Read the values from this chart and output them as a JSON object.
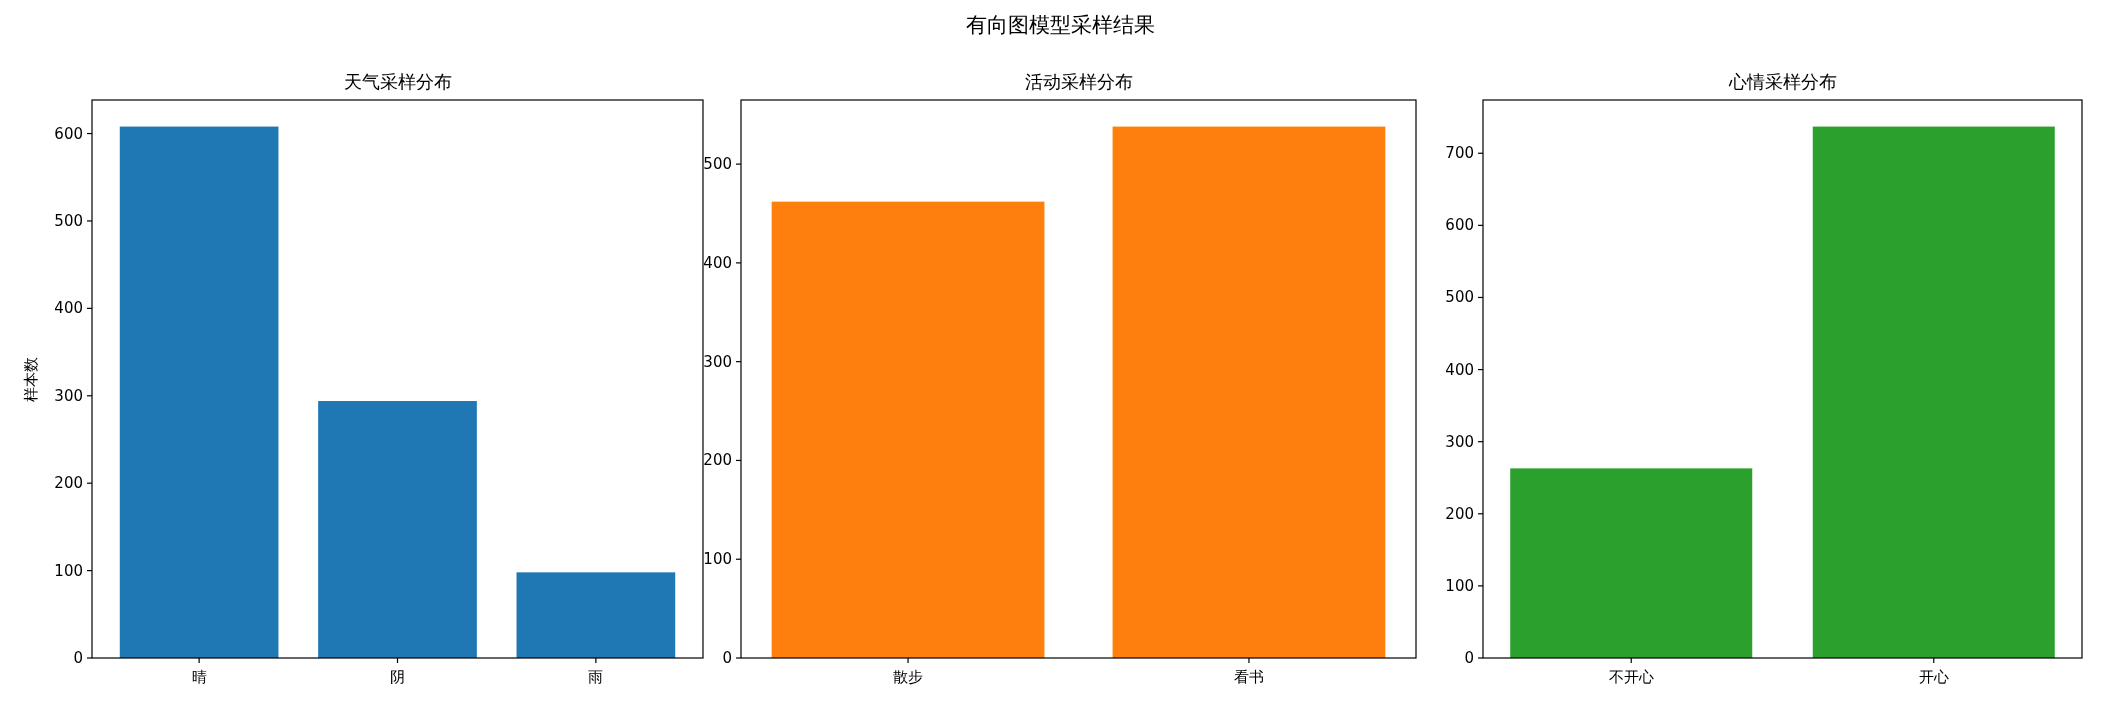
{
  "chart_data": [
    {
      "type": "bar",
      "title": "天气采样分布",
      "ylabel": "样本数",
      "annotations": [
        "有向图模型采样结果"
      ],
      "categories": [
        "晴",
        "阴",
        "雨"
      ],
      "values": [
        608,
        294,
        98
      ],
      "color": "#1f77b4",
      "ylim": [
        0,
        638.4
      ],
      "yticks": [
        0,
        100,
        200,
        300,
        400,
        500,
        600
      ]
    },
    {
      "type": "bar",
      "title": "活动采样分布",
      "categories": [
        "散步",
        "看书"
      ],
      "values": [
        462,
        538
      ],
      "color": "#ff7f0e",
      "ylim": [
        0,
        564.9
      ],
      "yticks": [
        0,
        100,
        200,
        300,
        400,
        500
      ]
    },
    {
      "type": "bar",
      "title": "心情采样分布",
      "categories": [
        "不开心",
        "开心"
      ],
      "values": [
        263,
        737
      ],
      "color": "#2ca02c",
      "ylim": [
        0,
        773.85
      ],
      "yticks": [
        0,
        100,
        200,
        300,
        400,
        500,
        600,
        700
      ]
    }
  ]
}
